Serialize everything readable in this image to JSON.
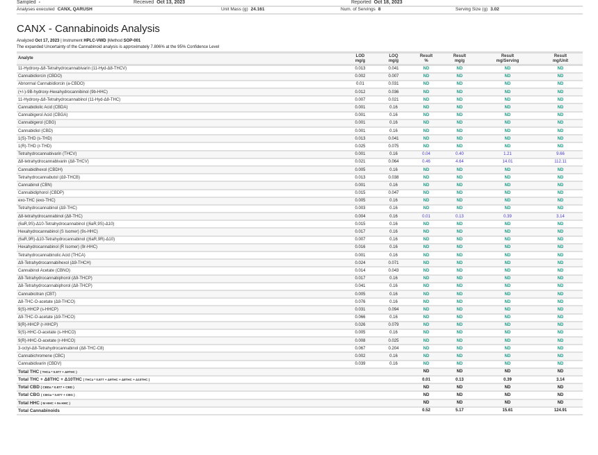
{
  "header": {
    "sampled_label": "Sampled",
    "sampled_value": "-",
    "received_label": "Received",
    "received_value": "Oct 13, 2023",
    "reported_label": "Reported",
    "reported_value": "Oct 18, 2023",
    "analyses_label": "Analyses executed",
    "analyses_value": "CANX, QARUSH",
    "unit_mass_label": "Unit Mass (g)",
    "unit_mass_value": "24.161",
    "servings_label": "Num. of Servings",
    "servings_value": "8",
    "serving_size_label": "Serving Size (g)",
    "serving_size_value": "3.02"
  },
  "report": {
    "title": "CANX - Cannabinoids Analysis",
    "analyzed_label": "Analyzed",
    "analyzed_value": "Oct 17, 2023",
    "instrument_label": "| Instrument",
    "instrument_value": "HPLC-VWD",
    "method_label": "|Method",
    "method_value": "SOP-001",
    "uncertainty": "The expanded Uncertainty of the Cannabinoid analysis is approximately 7.806% at the 95% Confidence Level"
  },
  "table": {
    "headers": [
      [
        "Analyte",
        ""
      ],
      [
        "LOD",
        "mg/g"
      ],
      [
        "LOQ",
        "mg/g"
      ],
      [
        "Result",
        "%"
      ],
      [
        "Result",
        "mg/g"
      ],
      [
        "Result",
        "mg/Serving"
      ],
      [
        "Result",
        "mg/Unit"
      ]
    ],
    "rows": [
      [
        "11-Hydroxy-Δ8-Tetrahydrocannabivarin (11-Hyd-Δ8-THCV)",
        "0.013",
        "0.041",
        "ND",
        "ND",
        "ND",
        "ND"
      ],
      [
        "Cannabidiorcin (CBDO)",
        "0.002",
        "0.007",
        "ND",
        "ND",
        "ND",
        "ND"
      ],
      [
        "Abnormal Cannabidiorcin (a-CBDO)",
        "0.01",
        "0.031",
        "ND",
        "ND",
        "ND",
        "ND"
      ],
      [
        "(+/-)-9B-hydroxy-Hexahydrocannibinol (9b-HHC)",
        "0.012",
        "0.036",
        "ND",
        "ND",
        "ND",
        "ND"
      ],
      [
        "11-Hydroxy-Δ8-Tetrahydrocannabinol (11-Hyd-Δ8-THC)",
        "0.007",
        "0.021",
        "ND",
        "ND",
        "ND",
        "ND"
      ],
      [
        "Cannabidiolic Acid (CBDA)",
        "0.001",
        "0.16",
        "ND",
        "ND",
        "ND",
        "ND"
      ],
      [
        "Cannabigerol Acid (CBGA)",
        "0.001",
        "0.16",
        "ND",
        "ND",
        "ND",
        "ND"
      ],
      [
        "Cannabigerol (CBG)",
        "0.001",
        "0.16",
        "ND",
        "ND",
        "ND",
        "ND"
      ],
      [
        "Cannabidiol (CBD)",
        "0.001",
        "0.16",
        "ND",
        "ND",
        "ND",
        "ND"
      ],
      [
        "1(S)-THD (s-THD)",
        "0.013",
        "0.041",
        "ND",
        "ND",
        "ND",
        "ND"
      ],
      [
        "1(R)-THD (r-THD)",
        "0.025",
        "0.075",
        "ND",
        "ND",
        "ND",
        "ND"
      ],
      [
        "Tetrahydrocannabivarin (THCV)",
        "0.001",
        "0.16",
        "0.04",
        "0.40",
        "1.21",
        "9.66"
      ],
      [
        "Δ8-tetrahydrocannabivarin (Δ8-THCV)",
        "0.021",
        "0.064",
        "0.46",
        "4.64",
        "14.01",
        "112.11"
      ],
      [
        "Cannabidihexol (CBDH)",
        "0.005",
        "0.16",
        "ND",
        "ND",
        "ND",
        "ND"
      ],
      [
        "Tetrahydrocannabutol (Δ9-THCB)",
        "0.013",
        "0.038",
        "ND",
        "ND",
        "ND",
        "ND"
      ],
      [
        "Cannabinol (CBN)",
        "0.001",
        "0.16",
        "ND",
        "ND",
        "ND",
        "ND"
      ],
      [
        "Cannabidiphorol (CBDP)",
        "0.015",
        "0.047",
        "ND",
        "ND",
        "ND",
        "ND"
      ],
      [
        "exo-THC (exo-THC)",
        "0.005",
        "0.16",
        "ND",
        "ND",
        "ND",
        "ND"
      ],
      [
        "Tetrahydrocannabinol (Δ9-THC)",
        "0.003",
        "0.16",
        "ND",
        "ND",
        "ND",
        "ND"
      ],
      [
        "Δ8-tetrahydrocannabinol (Δ8-THC)",
        "0.004",
        "0.16",
        "0.01",
        "0.13",
        "0.39",
        "3.14"
      ],
      [
        "(6aR,9S)-Δ10-Tetrahydrocannabinol ((6aR,9S)-Δ10)",
        "0.015",
        "0.16",
        "ND",
        "ND",
        "ND",
        "ND"
      ],
      [
        "Hexahydrocannabinol (S Isomer) (9s-HHC)",
        "0.017",
        "0.16",
        "ND",
        "ND",
        "ND",
        "ND"
      ],
      [
        "(6aR,9R)-Δ10-Tetrahydrocannabinol ((6aR,9R)-Δ10)",
        "0.007",
        "0.16",
        "ND",
        "ND",
        "ND",
        "ND"
      ],
      [
        "Hexahydrocannabinol (R Isomer) (9r-HHC)",
        "0.016",
        "0.16",
        "ND",
        "ND",
        "ND",
        "ND"
      ],
      [
        "Tetrahydrocannabinolic Acid (THCA)",
        "0.001",
        "0.16",
        "ND",
        "ND",
        "ND",
        "ND"
      ],
      [
        "Δ9-Tetrahydrocannabihexol (Δ9-THCH)",
        "0.024",
        "0.071",
        "ND",
        "ND",
        "ND",
        "ND"
      ],
      [
        "Cannabinol Acetate (CBNO)",
        "0.014",
        "0.043",
        "ND",
        "ND",
        "ND",
        "ND"
      ],
      [
        "Δ9-Tetrahydrocannabiphorol (Δ9-THCP)",
        "0.017",
        "0.16",
        "ND",
        "ND",
        "ND",
        "ND"
      ],
      [
        "Δ8-Tetrahydrocannabiphorol (Δ8-THCP)",
        "0.041",
        "0.16",
        "ND",
        "ND",
        "ND",
        "ND"
      ],
      [
        "Cannabicitran (CBT)",
        "0.005",
        "0.16",
        "ND",
        "ND",
        "ND",
        "ND"
      ],
      [
        "Δ8-THC-O-acetate (Δ8-THCO)",
        "0.076",
        "0.16",
        "ND",
        "ND",
        "ND",
        "ND"
      ],
      [
        "9(S)-HHCP (s-HHCP)",
        "0.031",
        "0.094",
        "ND",
        "ND",
        "ND",
        "ND"
      ],
      [
        "Δ9-THC-O-acetate (Δ9-THCO)",
        "0.066",
        "0.16",
        "ND",
        "ND",
        "ND",
        "ND"
      ],
      [
        "9(R)-HHCP (r-HHCP)",
        "0.026",
        "0.079",
        "ND",
        "ND",
        "ND",
        "ND"
      ],
      [
        "9(S)-HHC-O-acetate (s-HHCO)",
        "0.005",
        "0.16",
        "ND",
        "ND",
        "ND",
        "ND"
      ],
      [
        "9(R)-HHC-O-acetate (r-HHCO)",
        "0.008",
        "0.025",
        "ND",
        "ND",
        "ND",
        "ND"
      ],
      [
        "3-octyl-Δ8-Tetrahydrocannabinol (Δ8-THC-C8)",
        "0.067",
        "0.204",
        "ND",
        "ND",
        "ND",
        "ND"
      ],
      [
        "Cannabichromene (CBC)",
        "0.002",
        "0.16",
        "ND",
        "ND",
        "ND",
        "ND"
      ],
      [
        "Cannabidivarin (CBDV)",
        "0.039",
        "0.16",
        "ND",
        "ND",
        "ND",
        "ND"
      ]
    ],
    "totals": [
      {
        "label": "Total THC",
        "formula": "( THCa * 0.877 + Δ9THC )",
        "values": [
          "ND",
          "ND",
          "ND",
          "ND"
        ]
      },
      {
        "label": "Total THC + Δ8THC + Δ10THC",
        "formula": "( THCa * 0.877 + Δ9THC + Δ8THC + Δ10THC )",
        "values": [
          "0.01",
          "0.13",
          "0.39",
          "3.14"
        ]
      },
      {
        "label": "Total CBD",
        "formula": "( CBDa * 0.877 + CBD )",
        "values": [
          "ND",
          "ND",
          "ND",
          "ND"
        ]
      },
      {
        "label": "Total CBG",
        "formula": "( CBGa * 0.877 + CBG )",
        "values": [
          "ND",
          "ND",
          "ND",
          "ND"
        ]
      },
      {
        "label": "Total HHC",
        "formula": "( 9r-HHC + 9s-HHC )",
        "values": [
          "ND",
          "ND",
          "ND",
          "ND"
        ]
      },
      {
        "label": "Total Cannabinoids",
        "formula": "",
        "values": [
          "0.52",
          "5.17",
          "15.61",
          "124.91"
        ]
      }
    ]
  },
  "colors": {
    "nd": "#1b9a86",
    "positive": "#4437c8",
    "stripe": "#f7f7f7",
    "rule": "#dddddd"
  }
}
